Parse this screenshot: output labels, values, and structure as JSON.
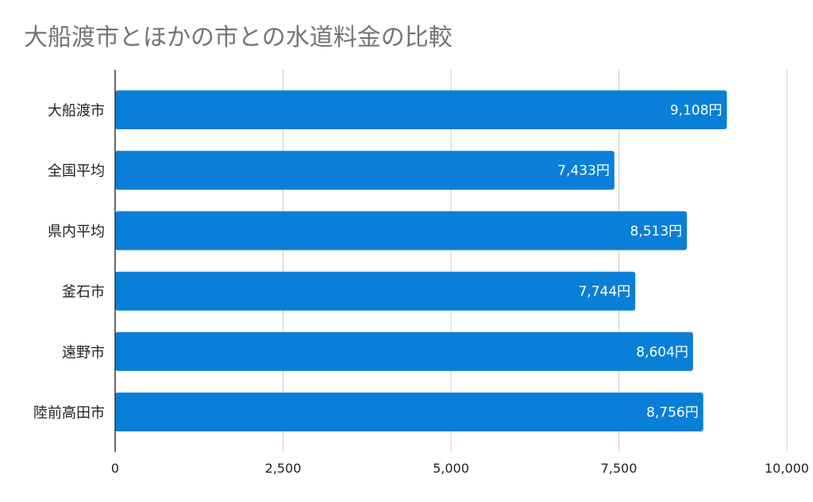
{
  "chart_data": {
    "type": "bar",
    "orientation": "horizontal",
    "title": "大船渡市とほかの市との水道料金の比較",
    "categories": [
      "大船渡市",
      "全国平均",
      "県内平均",
      "釜石市",
      "遠野市",
      "陸前高田市"
    ],
    "values": [
      9108,
      7433,
      8513,
      7744,
      8604,
      8756
    ],
    "data_labels": [
      "9,108円",
      "7,433円",
      "8,513円",
      "7,744円",
      "8,604円",
      "8,756円"
    ],
    "xlim": [
      0,
      10000
    ],
    "x_ticks": [
      0,
      2500,
      5000,
      7500,
      10000
    ],
    "x_tick_labels": [
      "0",
      "2,500",
      "5,000",
      "7,500",
      "10,000"
    ],
    "xlabel": "",
    "ylabel": "",
    "grid": "vertical",
    "legend": "none",
    "bar_color": "#0a7fd8",
    "label_color": "#ffffff"
  }
}
